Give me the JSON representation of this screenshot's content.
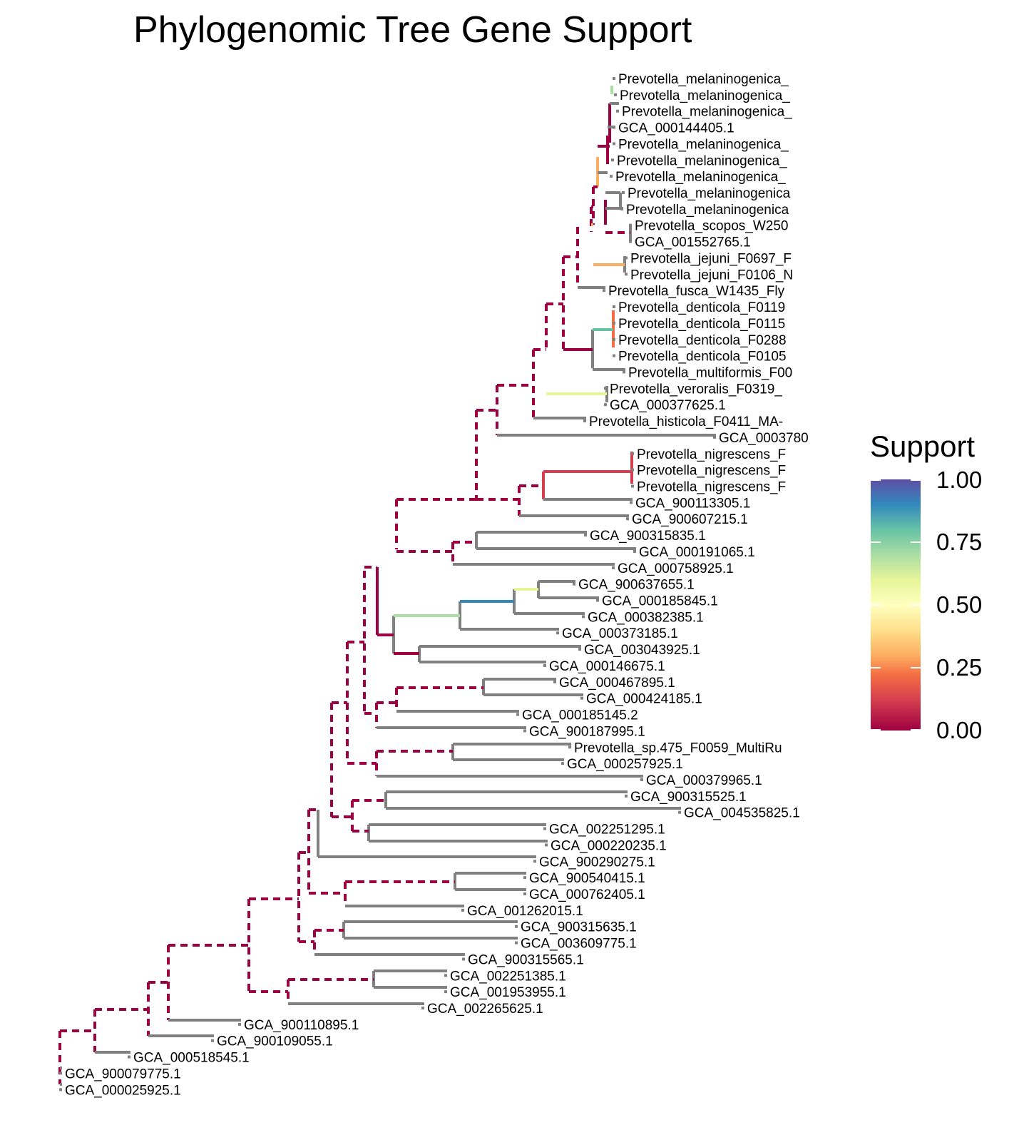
{
  "title": "Phylogenomic Tree Gene Support",
  "legend": {
    "title": "Support",
    "labels": [
      "1.00",
      "0.75",
      "0.50",
      "0.25",
      "0.00"
    ],
    "color_scale": [
      "#9e0142",
      "#d53e4f",
      "#f46d43",
      "#fdae61",
      "#fee08b",
      "#ffffbf",
      "#e6f598",
      "#abdda4",
      "#66c2a5",
      "#3288bd",
      "#5e4fa2"
    ]
  },
  "colors": {
    "no_support_dashed": "#9e0142",
    "leaf_branch": "#808080"
  },
  "tips": [
    "Prevotella_melaninogenica_",
    "Prevotella_melaninogenica_",
    "Prevotella_melaninogenica_",
    "GCA_000144405.1",
    "Prevotella_melaninogenica_",
    "Prevotella_melaninogenica_",
    "Prevotella_melaninogenica_",
    "Prevotella_melaninogenica",
    "Prevotella_melaninogenica",
    "Prevotella_scopos_W250",
    "GCA_001552765.1",
    "Prevotella_jejuni_F0697_F",
    "Prevotella_jejuni_F0106_N",
    "Prevotella_fusca_W1435_Fly",
    "Prevotella_denticola_F0119",
    "Prevotella_denticola_F0115",
    "Prevotella_denticola_F0288",
    "Prevotella_denticola_F0105",
    "Prevotella_multiformis_F00",
    "Prevotella_veroralis_F0319_",
    "GCA_000377625.1",
    "Prevotella_histicola_F0411_MA-",
    "GCA_0003780",
    "Prevotella_nigrescens_F",
    "Prevotella_nigrescens_F",
    "Prevotella_nigrescens_F",
    "GCA_900113305.1",
    "GCA_900607215.1",
    "GCA_900315835.1",
    "GCA_000191065.1",
    "GCA_000758925.1",
    "GCA_900637655.1",
    "GCA_000185845.1",
    "GCA_000382385.1",
    "GCA_000373185.1",
    "GCA_003043925.1",
    "GCA_000146675.1",
    "GCA_000467895.1",
    "GCA_000424185.1",
    "GCA_000185145.2",
    "GCA_900187995.1",
    "Prevotella_sp.475_F0059_MultiRu",
    "GCA_000257925.1",
    "GCA_000379965.1",
    "GCA_900315525.1",
    "GCA_004535825.1",
    "GCA_002251295.1",
    "GCA_000220235.1",
    "GCA_900290275.1",
    "GCA_900540415.1",
    "GCA_000762405.1",
    "GCA_001262015.1",
    "GCA_900315635.1",
    "GCA_003609775.1",
    "GCA_900315565.1",
    "GCA_002251385.1",
    "GCA_001953955.1",
    "GCA_002265625.1",
    "GCA_900110895.1",
    "GCA_900109055.1",
    "GCA_000518545.1",
    "GCA_900079775.1",
    "GCA_000025925.1"
  ]
}
